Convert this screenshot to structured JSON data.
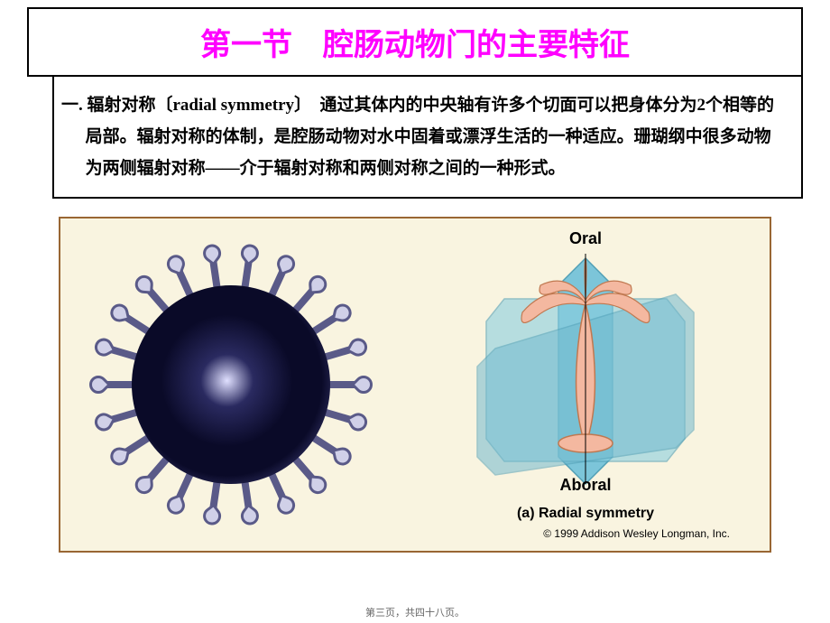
{
  "title": "第一节　腔肠动物门的主要特征",
  "body_text": "一. 辐射对称〔radial symmetry〕　通过其体内的中央轴有许多个切面可以把身体分为2个相等的局部。辐射对称的体制，是腔肠动物对水中固着或漂浮生活的一种适应。珊瑚纲中很多动物为两侧辐射对称——介于辐射对称和两侧对称之间的一种形式。",
  "diagram_labels": {
    "oral": "Oral",
    "aboral": "Aboral",
    "caption": "(a) Radial symmetry",
    "copyright": "© 1999 Addison Wesley Longman, Inc."
  },
  "colors": {
    "title_color": "#ff00ff",
    "border_color": "#000000",
    "image_border": "#996633",
    "image_bg": "#f9f4e0",
    "plane_color": "#5ab8d8",
    "plane_edge": "#2288aa",
    "organism_color": "#f4b8a0",
    "organism_outline": "#c07850",
    "tentacle_color": "#5a5a88"
  },
  "footer": "第三页，共四十八页。",
  "left_organism": {
    "tentacle_count": 22
  }
}
